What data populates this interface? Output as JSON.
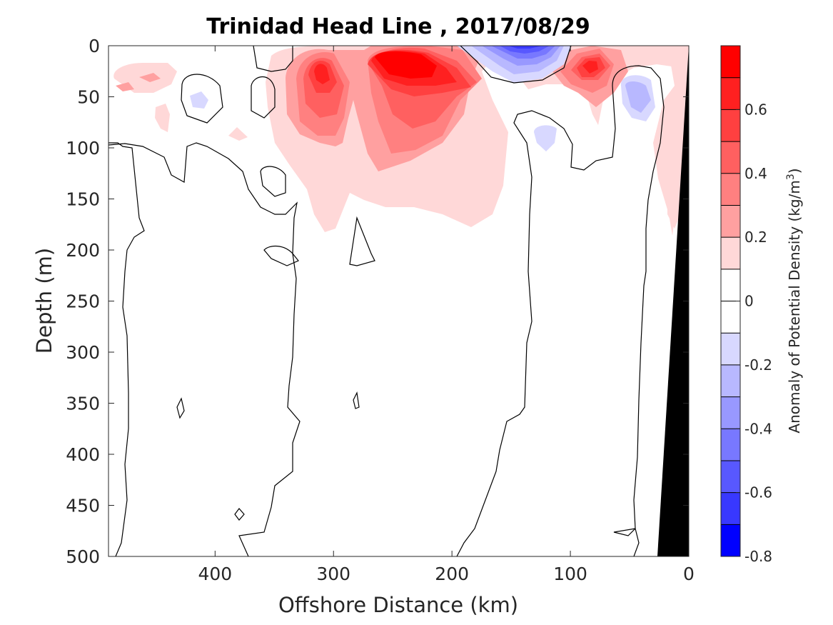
{
  "chart_data": {
    "type": "heatmap",
    "title": "Trinidad Head Line , 2017/08/29",
    "xlabel": "Offshore Distance (km)",
    "ylabel": "Depth (m)",
    "colorbar_label": "Anomaly of Potential Density (kg/m³)",
    "colorbar_label_text": "Anomaly of Potential Density (kg/m",
    "colorbar_label_sup": "3",
    "colorbar_label_tail": ")",
    "xlim": [
      490,
      0
    ],
    "ylim": [
      0,
      500
    ],
    "y_reversed": true,
    "x_reversed": true,
    "x_ticks": [
      400,
      300,
      200,
      100,
      0
    ],
    "y_ticks": [
      0,
      50,
      100,
      150,
      200,
      250,
      300,
      350,
      400,
      450,
      500
    ],
    "colorbar_range": [
      -0.8,
      0.8
    ],
    "colorbar_ticks": [
      0.6,
      0.4,
      0.2,
      0,
      -0.2,
      -0.4,
      -0.6,
      -0.8
    ],
    "colorbar_levels": [
      {
        "from": 0.7,
        "to": 0.8,
        "color": "#ff0000"
      },
      {
        "from": 0.6,
        "to": 0.7,
        "color": "#ff2020"
      },
      {
        "from": 0.5,
        "to": 0.6,
        "color": "#ff4040"
      },
      {
        "from": 0.4,
        "to": 0.5,
        "color": "#ff6060"
      },
      {
        "from": 0.3,
        "to": 0.4,
        "color": "#ff8080"
      },
      {
        "from": 0.2,
        "to": 0.3,
        "color": "#ffa0a0"
      },
      {
        "from": 0.1,
        "to": 0.2,
        "color": "#ffd8d8"
      },
      {
        "from": 0.0,
        "to": 0.1,
        "color": "#ffffff"
      },
      {
        "from": -0.1,
        "to": 0.0,
        "color": "#ffffff"
      },
      {
        "from": -0.2,
        "to": -0.1,
        "color": "#d8d8ff"
      },
      {
        "from": -0.3,
        "to": -0.2,
        "color": "#b8b8ff"
      },
      {
        "from": -0.4,
        "to": -0.3,
        "color": "#9898ff"
      },
      {
        "from": -0.5,
        "to": -0.4,
        "color": "#7878ff"
      },
      {
        "from": -0.6,
        "to": -0.5,
        "color": "#5858ff"
      },
      {
        "from": -0.7,
        "to": -0.6,
        "color": "#3838ff"
      },
      {
        "from": -0.8,
        "to": -0.7,
        "color": "#0000ff"
      }
    ],
    "features": [
      {
        "name": "positive-core-250km",
        "x": 245,
        "depth": 25,
        "anomaly": 0.8
      },
      {
        "name": "positive-core-310km",
        "x": 312,
        "depth": 30,
        "anomaly": 0.6
      },
      {
        "name": "positive-core-80km",
        "x": 82,
        "depth": 20,
        "anomaly": 0.6
      },
      {
        "name": "negative-core-150km",
        "x": 148,
        "depth": 5,
        "anomaly": -0.7
      },
      {
        "name": "negative-core-35km",
        "x": 38,
        "depth": 50,
        "anomaly": -0.3
      },
      {
        "name": "negative-core-120km",
        "x": 122,
        "depth": 85,
        "anomaly": -0.2
      },
      {
        "name": "negative-core-410km",
        "x": 412,
        "depth": 55,
        "anomaly": -0.2
      },
      {
        "name": "positive-patch-455km",
        "x": 455,
        "depth": 35,
        "anomaly": 0.2
      },
      {
        "name": "positive-patch-coast",
        "x": 18,
        "depth": 150,
        "anomaly": 0.2
      }
    ],
    "bathymetry": {
      "color": "#000000",
      "points": [
        [
          0,
          0
        ],
        [
          0,
          500
        ],
        [
          26,
          500
        ]
      ]
    },
    "colors": {
      "bathymetry": "#000000",
      "contour": "#000000"
    }
  }
}
